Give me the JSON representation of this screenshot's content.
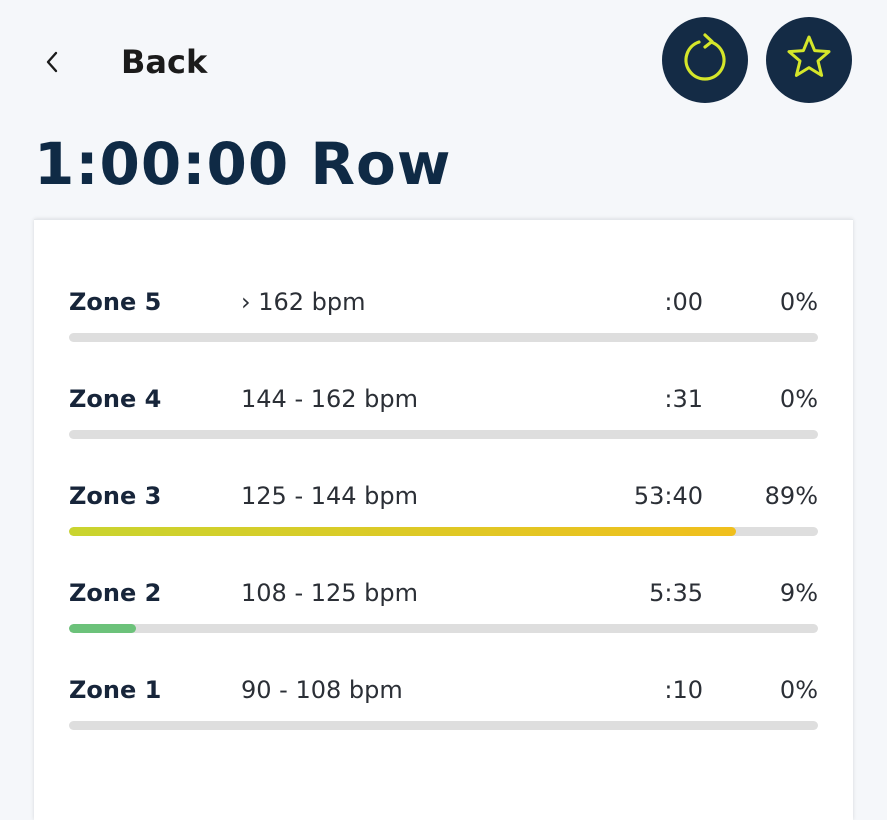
{
  "header": {
    "back_label": "Back"
  },
  "title": "1:00:00 Row",
  "zones": [
    {
      "name": "Zone 5",
      "range": "› 162 bpm",
      "time": ":00",
      "percent": "0%",
      "fraction": 0,
      "fill": ""
    },
    {
      "name": "Zone 4",
      "range": "144 - 162 bpm",
      "time": ":31",
      "percent": "0%",
      "fraction": 0,
      "fill": ""
    },
    {
      "name": "Zone 3",
      "range": "125 - 144 bpm",
      "time": "53:40",
      "percent": "89%",
      "fraction": 0.89,
      "fill": "linear-gradient(90deg, #c9d42f 0%, #f0bf1d 100%)"
    },
    {
      "name": "Zone 2",
      "range": "108 - 125 bpm",
      "time": "5:35",
      "percent": "9%",
      "fraction": 0.09,
      "fill": "#6cc27a"
    },
    {
      "name": "Zone 1",
      "range": "90 - 108 bpm",
      "time": ":10",
      "percent": "0%",
      "fraction": 0,
      "fill": ""
    }
  ],
  "colors": {
    "button_bg": "#142b45",
    "icon_accent": "#d5e62a",
    "title": "#0f2a45",
    "track": "#dedede"
  },
  "icons": {
    "back": "chevron-left-icon",
    "restart": "restart-icon",
    "favorite": "star-icon"
  }
}
